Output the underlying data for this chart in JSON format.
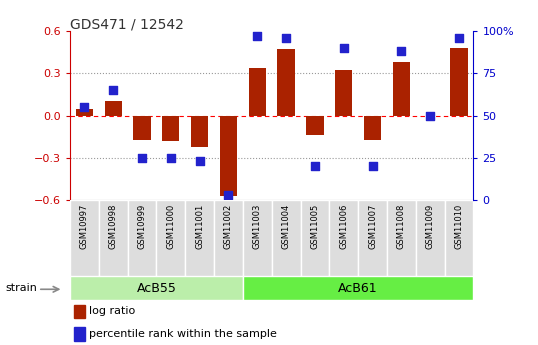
{
  "title": "GDS471 / 12542",
  "samples": [
    "GSM10997",
    "GSM10998",
    "GSM10999",
    "GSM11000",
    "GSM11001",
    "GSM11002",
    "GSM11003",
    "GSM11004",
    "GSM11005",
    "GSM11006",
    "GSM11007",
    "GSM11008",
    "GSM11009",
    "GSM11010"
  ],
  "log_ratio": [
    0.05,
    0.1,
    -0.17,
    -0.18,
    -0.22,
    -0.57,
    0.34,
    0.47,
    -0.14,
    0.32,
    -0.17,
    0.38,
    0.0,
    0.48
  ],
  "percentile_rank": [
    55,
    65,
    25,
    25,
    23,
    3,
    97,
    96,
    20,
    90,
    20,
    88,
    50,
    96
  ],
  "groups": [
    {
      "label": "AcB55",
      "start": 0,
      "end": 5,
      "color": "#bbeeaa"
    },
    {
      "label": "AcB61",
      "start": 6,
      "end": 13,
      "color": "#66dd44"
    }
  ],
  "bar_color": "#aa2200",
  "dot_color": "#2222cc",
  "ylim_left": [
    -0.6,
    0.6
  ],
  "ylim_right": [
    0,
    100
  ],
  "yticks_left": [
    -0.6,
    -0.3,
    0.0,
    0.3,
    0.6
  ],
  "yticks_right": [
    0,
    25,
    50,
    75,
    100
  ],
  "bg_color": "#ffffff",
  "strain_label": "strain",
  "legend_items": [
    {
      "label": "log ratio",
      "color": "#aa2200"
    },
    {
      "label": "percentile rank within the sample",
      "color": "#2222cc"
    }
  ]
}
